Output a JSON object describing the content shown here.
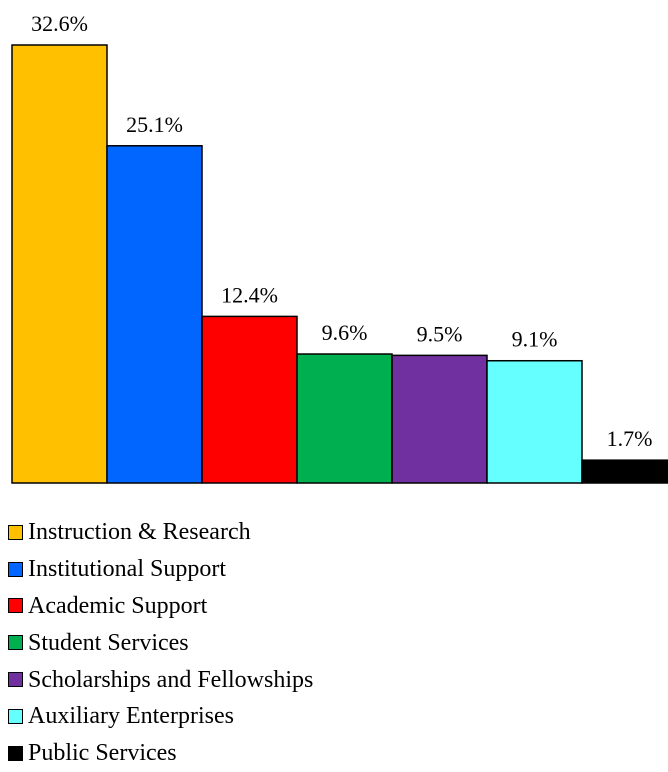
{
  "chart_data": {
    "type": "bar",
    "title": "",
    "xlabel": "",
    "ylabel": "",
    "ylim": [
      0,
      32.6
    ],
    "legend_position": "bottom",
    "categories": [
      "Instruction & Research",
      "Institutional Support",
      "Academic Support",
      "Student Services",
      "Scholarships and Fellowships",
      "Auxiliary Enterprises",
      "Public Services"
    ],
    "values": [
      32.6,
      25.1,
      12.4,
      9.6,
      9.5,
      9.1,
      1.7
    ],
    "labels": [
      "32.6%",
      "25.1%",
      "12.4%",
      "9.6%",
      "9.5%",
      "9.1%",
      "1.7%"
    ],
    "colors": [
      "#FFC000",
      "#0066FF",
      "#FF0000",
      "#00B050",
      "#7030A0",
      "#66FFFF",
      "#000000"
    ]
  }
}
